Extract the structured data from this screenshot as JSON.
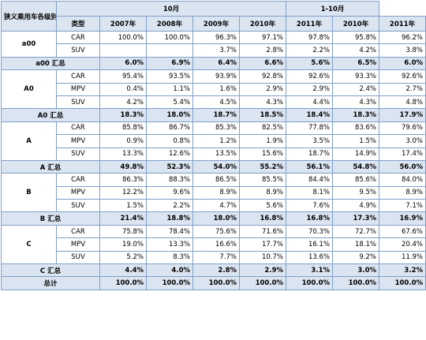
{
  "table": {
    "corner": "狭义乘用车各级别分车型批发",
    "type_header": "类型",
    "period_headers": [
      {
        "label": "10月",
        "span": 5
      },
      {
        "label": "1-10月",
        "span": 2
      }
    ],
    "years": [
      "2007年",
      "2008年",
      "2009年",
      "2010年",
      "2011年",
      "2010年",
      "2011年"
    ],
    "groups": [
      {
        "name": "a00",
        "rows": [
          {
            "type": "CAR",
            "values": [
              "100.0%",
              "100.0%",
              "96.3%",
              "97.1%",
              "97.8%",
              "95.8%",
              "96.2%"
            ]
          },
          {
            "type": "SUV",
            "values": [
              null,
              null,
              "3.7%",
              "2.8%",
              "2.2%",
              "4.2%",
              "3.8%"
            ]
          }
        ],
        "summary": {
          "label": "a00 汇总",
          "values": [
            "6.0%",
            "6.9%",
            "6.4%",
            "6.6%",
            "5.6%",
            "6.5%",
            "6.0%"
          ]
        }
      },
      {
        "name": "A0",
        "rows": [
          {
            "type": "CAR",
            "values": [
              "95.4%",
              "93.5%",
              "93.9%",
              "92.8%",
              "92.6%",
              "93.3%",
              "92.6%"
            ]
          },
          {
            "type": "MPV",
            "values": [
              "0.4%",
              "1.1%",
              "1.6%",
              "2.9%",
              "2.9%",
              "2.4%",
              "2.7%"
            ]
          },
          {
            "type": "SUV",
            "values": [
              "4.2%",
              "5.4%",
              "4.5%",
              "4.3%",
              "4.4%",
              "4.3%",
              "4.8%"
            ]
          }
        ],
        "summary": {
          "label": "A0 汇总",
          "values": [
            "18.3%",
            "18.0%",
            "18.7%",
            "18.5%",
            "18.4%",
            "18.3%",
            "17.9%"
          ]
        }
      },
      {
        "name": "A",
        "rows": [
          {
            "type": "CAR",
            "values": [
              "85.8%",
              "86.7%",
              "85.3%",
              "82.5%",
              "77.8%",
              "83.6%",
              "79.6%"
            ]
          },
          {
            "type": "MPV",
            "values": [
              "0.9%",
              "0.8%",
              "1.2%",
              "1.9%",
              "3.5%",
              "1.5%",
              "3.0%"
            ]
          },
          {
            "type": "SUV",
            "values": [
              "13.3%",
              "12.6%",
              "13.5%",
              "15.6%",
              "18.7%",
              "14.9%",
              "17.4%"
            ]
          }
        ],
        "summary": {
          "label": "A 汇总",
          "values": [
            "49.8%",
            "52.3%",
            "54.0%",
            "55.2%",
            "56.1%",
            "54.8%",
            "56.0%"
          ]
        }
      },
      {
        "name": "B",
        "rows": [
          {
            "type": "CAR",
            "values": [
              "86.3%",
              "88.3%",
              "86.5%",
              "85.5%",
              "84.4%",
              "85.6%",
              "84.0%"
            ]
          },
          {
            "type": "MPV",
            "values": [
              "12.2%",
              "9.6%",
              "8.9%",
              "8.9%",
              "8.1%",
              "9.5%",
              "8.9%"
            ]
          },
          {
            "type": "SUV",
            "values": [
              "1.5%",
              "2.2%",
              "4.7%",
              "5.6%",
              "7.6%",
              "4.9%",
              "7.1%"
            ]
          }
        ],
        "summary": {
          "label": "B 汇总",
          "values": [
            "21.4%",
            "18.8%",
            "18.0%",
            "16.8%",
            "16.8%",
            "17.3%",
            "16.9%"
          ]
        }
      },
      {
        "name": "C",
        "rows": [
          {
            "type": "CAR",
            "values": [
              "75.8%",
              "78.4%",
              "75.6%",
              "71.6%",
              "70.3%",
              "72.7%",
              "67.6%"
            ]
          },
          {
            "type": "MPV",
            "values": [
              "19.0%",
              "13.3%",
              "16.6%",
              "17.7%",
              "16.1%",
              "18.1%",
              "20.4%"
            ]
          },
          {
            "type": "SUV",
            "values": [
              "5.2%",
              "8.3%",
              "7.7%",
              "10.7%",
              "13.6%",
              "9.2%",
              "11.9%"
            ]
          }
        ],
        "summary": {
          "label": "C 汇总",
          "values": [
            "4.4%",
            "4.0%",
            "2.8%",
            "2.9%",
            "3.1%",
            "3.0%",
            "3.2%"
          ]
        }
      }
    ],
    "total": {
      "label": "总计",
      "values": [
        "100.0%",
        "100.0%",
        "100.0%",
        "100.0%",
        "100.0%",
        "100.0%",
        "100.0%"
      ]
    }
  }
}
